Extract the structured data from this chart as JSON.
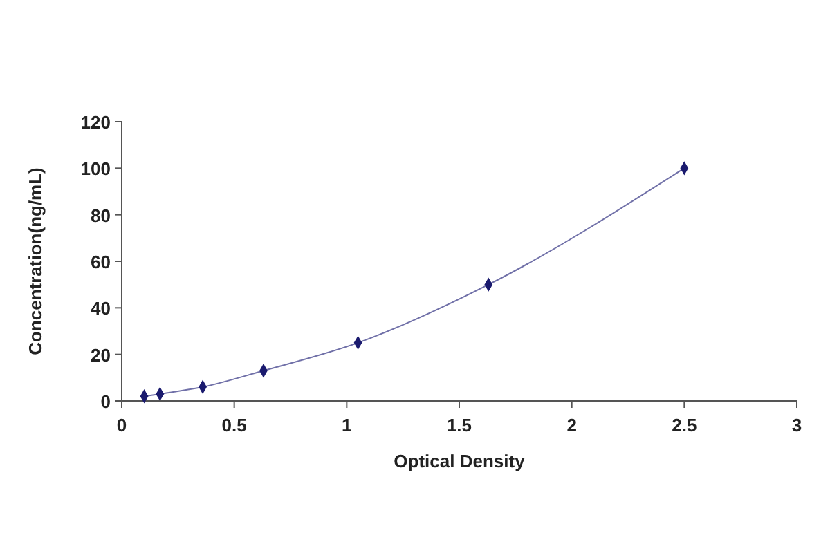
{
  "chart_data": {
    "type": "scatter",
    "xlabel": "Optical Density",
    "ylabel": "Concentration(ng/mL)",
    "xlim": [
      0,
      3
    ],
    "xticks": [
      0,
      0.5,
      1,
      1.5,
      2,
      2.5,
      3
    ],
    "ylim": [
      0,
      120
    ],
    "yticks": [
      0,
      20,
      40,
      60,
      80,
      100,
      120
    ],
    "grid": false,
    "series": [
      {
        "type": "line",
        "color": "#7070a8",
        "marker": "none",
        "x": [
          0.1,
          0.17,
          0.36,
          0.63,
          1.05,
          1.63,
          2.5
        ],
        "values": [
          2,
          3,
          6,
          13,
          25,
          50,
          100
        ]
      },
      {
        "color": "#1a1a6e",
        "marker": "diamond",
        "x": [
          0.1,
          0.17,
          0.36,
          0.63,
          1.05,
          1.63,
          2.5
        ],
        "values": [
          2,
          3,
          6,
          13,
          25,
          50,
          100
        ]
      }
    ]
  }
}
